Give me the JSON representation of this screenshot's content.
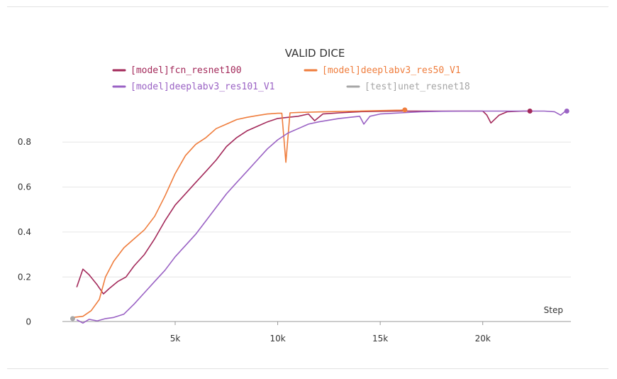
{
  "chart_data": {
    "type": "line",
    "title": "VALID DICE",
    "xlabel": "Step",
    "ylabel": "",
    "xlim": [
      -500,
      24300
    ],
    "ylim": [
      -0.02,
      0.99
    ],
    "x_ticks": [
      {
        "value": 5000,
        "label": "5k"
      },
      {
        "value": 10000,
        "label": "10k"
      },
      {
        "value": 15000,
        "label": "15k"
      },
      {
        "value": 20000,
        "label": "20k"
      }
    ],
    "y_ticks": [
      {
        "value": 0,
        "label": "0"
      },
      {
        "value": 0.2,
        "label": "0.2"
      },
      {
        "value": 0.4,
        "label": "0.4"
      },
      {
        "value": 0.6,
        "label": "0.6"
      },
      {
        "value": 0.8,
        "label": "0.8"
      }
    ],
    "grid": "horizontal",
    "legend_position": "top",
    "series": [
      {
        "name": "[model]fcn_resnet100",
        "color": "#a3295a",
        "end_marker": true,
        "points": [
          [
            200,
            0.155
          ],
          [
            500,
            0.235
          ],
          [
            800,
            0.21
          ],
          [
            1200,
            0.165
          ],
          [
            1500,
            0.125
          ],
          [
            1800,
            0.15
          ],
          [
            2200,
            0.18
          ],
          [
            2600,
            0.2
          ],
          [
            3000,
            0.25
          ],
          [
            3500,
            0.3
          ],
          [
            4000,
            0.37
          ],
          [
            4500,
            0.45
          ],
          [
            5000,
            0.52
          ],
          [
            5500,
            0.57
          ],
          [
            6000,
            0.62
          ],
          [
            6500,
            0.67
          ],
          [
            7000,
            0.72
          ],
          [
            7500,
            0.78
          ],
          [
            8000,
            0.82
          ],
          [
            8500,
            0.85
          ],
          [
            9000,
            0.87
          ],
          [
            9500,
            0.89
          ],
          [
            10000,
            0.905
          ],
          [
            10500,
            0.91
          ],
          [
            11000,
            0.915
          ],
          [
            11500,
            0.925
          ],
          [
            11800,
            0.895
          ],
          [
            12200,
            0.925
          ],
          [
            13000,
            0.93
          ],
          [
            14000,
            0.935
          ],
          [
            15000,
            0.937
          ],
          [
            16000,
            0.938
          ],
          [
            17000,
            0.938
          ],
          [
            18000,
            0.938
          ],
          [
            19000,
            0.938
          ],
          [
            20000,
            0.938
          ],
          [
            20200,
            0.92
          ],
          [
            20400,
            0.885
          ],
          [
            20800,
            0.92
          ],
          [
            21200,
            0.935
          ],
          [
            22000,
            0.938
          ],
          [
            22300,
            0.938
          ]
        ]
      },
      {
        "name": "[model]deeplabv3_res50_V1",
        "color": "#ef7d3d",
        "end_marker": true,
        "points": [
          [
            0,
            0.02
          ],
          [
            500,
            0.025
          ],
          [
            900,
            0.05
          ],
          [
            1300,
            0.1
          ],
          [
            1600,
            0.2
          ],
          [
            2000,
            0.27
          ],
          [
            2500,
            0.33
          ],
          [
            3000,
            0.37
          ],
          [
            3500,
            0.41
          ],
          [
            4000,
            0.47
          ],
          [
            4500,
            0.56
          ],
          [
            5000,
            0.66
          ],
          [
            5500,
            0.74
          ],
          [
            6000,
            0.79
          ],
          [
            6500,
            0.82
          ],
          [
            7000,
            0.86
          ],
          [
            7500,
            0.88
          ],
          [
            8000,
            0.9
          ],
          [
            8500,
            0.91
          ],
          [
            9000,
            0.918
          ],
          [
            9500,
            0.925
          ],
          [
            10000,
            0.928
          ],
          [
            10200,
            0.928
          ],
          [
            10400,
            0.71
          ],
          [
            10600,
            0.93
          ],
          [
            11000,
            0.932
          ],
          [
            12000,
            0.934
          ],
          [
            13000,
            0.936
          ],
          [
            14000,
            0.938
          ],
          [
            15000,
            0.94
          ],
          [
            16000,
            0.942
          ],
          [
            16200,
            0.943
          ]
        ]
      },
      {
        "name": "[model]deeplabv3_res101_V1",
        "color": "#9a62c4",
        "end_marker": true,
        "points": [
          [
            200,
            0.01
          ],
          [
            500,
            -0.005
          ],
          [
            800,
            0.012
          ],
          [
            1200,
            0.005
          ],
          [
            1600,
            0.015
          ],
          [
            2000,
            0.02
          ],
          [
            2500,
            0.035
          ],
          [
            3000,
            0.08
          ],
          [
            3500,
            0.13
          ],
          [
            4000,
            0.18
          ],
          [
            4500,
            0.23
          ],
          [
            5000,
            0.29
          ],
          [
            5500,
            0.34
          ],
          [
            6000,
            0.39
          ],
          [
            6500,
            0.45
          ],
          [
            7000,
            0.51
          ],
          [
            7500,
            0.57
          ],
          [
            8000,
            0.62
          ],
          [
            8500,
            0.67
          ],
          [
            9000,
            0.72
          ],
          [
            9500,
            0.77
          ],
          [
            10000,
            0.81
          ],
          [
            10500,
            0.84
          ],
          [
            11000,
            0.86
          ],
          [
            11500,
            0.88
          ],
          [
            12000,
            0.89
          ],
          [
            13000,
            0.905
          ],
          [
            14000,
            0.915
          ],
          [
            14200,
            0.88
          ],
          [
            14500,
            0.915
          ],
          [
            15000,
            0.925
          ],
          [
            16000,
            0.93
          ],
          [
            17000,
            0.935
          ],
          [
            18000,
            0.937
          ],
          [
            19000,
            0.938
          ],
          [
            20000,
            0.938
          ],
          [
            21000,
            0.938
          ],
          [
            22000,
            0.938
          ],
          [
            23000,
            0.938
          ],
          [
            23500,
            0.935
          ],
          [
            23800,
            0.92
          ],
          [
            24000,
            0.935
          ],
          [
            24100,
            0.938
          ]
        ]
      },
      {
        "name": "[test]unet_resnet18",
        "color": "#a6a6a6",
        "end_marker": true,
        "points": [
          [
            0,
            0.015
          ]
        ]
      }
    ]
  }
}
